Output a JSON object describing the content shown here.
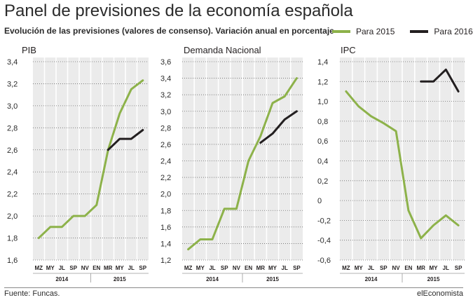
{
  "title": "Panel de previsiones de la economía española",
  "subtitle": "Evolución de las previsiones (valores de consenso). Variación anual en porcentaje",
  "legend": [
    {
      "label": "Para 2015",
      "color": "#8db24a"
    },
    {
      "label": "Para 2016",
      "color": "#231f20"
    }
  ],
  "colors": {
    "s2015": "#8db24a",
    "s2016": "#231f20",
    "panel": "#ebebeb",
    "grid": "#ffffff",
    "separator": "#9a9a9a"
  },
  "x_labels": [
    "MZ",
    "MY",
    "JL",
    "SP",
    "NV",
    "EN",
    "MR",
    "MY",
    "JL",
    "SP"
  ],
  "year_labels": [
    "2014",
    "2015"
  ],
  "source": "Fuente: Funcas.",
  "brand": "elEconomista",
  "chart_data": [
    {
      "type": "line",
      "title": "PIB",
      "ylim": [
        1.6,
        3.4
      ],
      "yticks": [
        "1,6",
        "1,8",
        "2,0",
        "2,2",
        "2,4",
        "2,6",
        "2,8",
        "3,0",
        "3,2",
        "3,4"
      ],
      "x": [
        "MZ 2014",
        "MY 2014",
        "JL 2014",
        "SP 2014",
        "NV 2014",
        "EN 2015",
        "MR 2015",
        "MY 2015",
        "JL 2015",
        "SP 2015"
      ],
      "series": [
        {
          "name": "Para 2015",
          "values": [
            1.8,
            1.9,
            1.9,
            2.0,
            2.0,
            2.1,
            2.6,
            2.93,
            3.15,
            3.23
          ]
        },
        {
          "name": "Para 2016",
          "values": [
            null,
            null,
            null,
            null,
            null,
            null,
            2.6,
            2.7,
            2.7,
            2.78
          ]
        }
      ]
    },
    {
      "type": "line",
      "title": "Demanda Nacional",
      "ylim": [
        1.2,
        3.6
      ],
      "yticks": [
        "1,2",
        "1,4",
        "1,6",
        "1,8",
        "2,0",
        "2,2",
        "2,4",
        "2,6",
        "2,8",
        "3,0",
        "3,2",
        "3,4",
        "3,6"
      ],
      "x": [
        "MZ 2014",
        "MY 2014",
        "JL 2014",
        "SP 2014",
        "NV 2014",
        "EN 2015",
        "MR 2015",
        "MY 2015",
        "JL 2015",
        "SP 2015"
      ],
      "series": [
        {
          "name": "Para 2015",
          "values": [
            1.33,
            1.45,
            1.45,
            1.82,
            1.82,
            2.4,
            2.7,
            3.1,
            3.18,
            3.4
          ]
        },
        {
          "name": "Para 2016",
          "values": [
            null,
            null,
            null,
            null,
            null,
            null,
            2.62,
            2.73,
            2.9,
            3.0
          ]
        }
      ]
    },
    {
      "type": "line",
      "title": "IPC",
      "ylim": [
        -0.6,
        1.4
      ],
      "yticks": [
        "-0,6",
        "-0,4",
        "-0,2",
        "0",
        "0,2",
        "0,4",
        "0,6",
        "0,8",
        "1,0",
        "1,2",
        "1,4"
      ],
      "x": [
        "MZ 2014",
        "MY 2014",
        "JL 2014",
        "SP 2014",
        "NV 2014",
        "EN 2015",
        "MR 2015",
        "MY 2015",
        "JL 2015",
        "SP 2015"
      ],
      "series": [
        {
          "name": "Para 2015",
          "values": [
            1.1,
            0.95,
            0.85,
            0.78,
            0.7,
            -0.1,
            -0.38,
            -0.25,
            -0.15,
            -0.25
          ]
        },
        {
          "name": "Para 2016",
          "values": [
            null,
            null,
            null,
            null,
            null,
            null,
            1.2,
            1.2,
            1.32,
            1.1
          ]
        }
      ]
    }
  ]
}
